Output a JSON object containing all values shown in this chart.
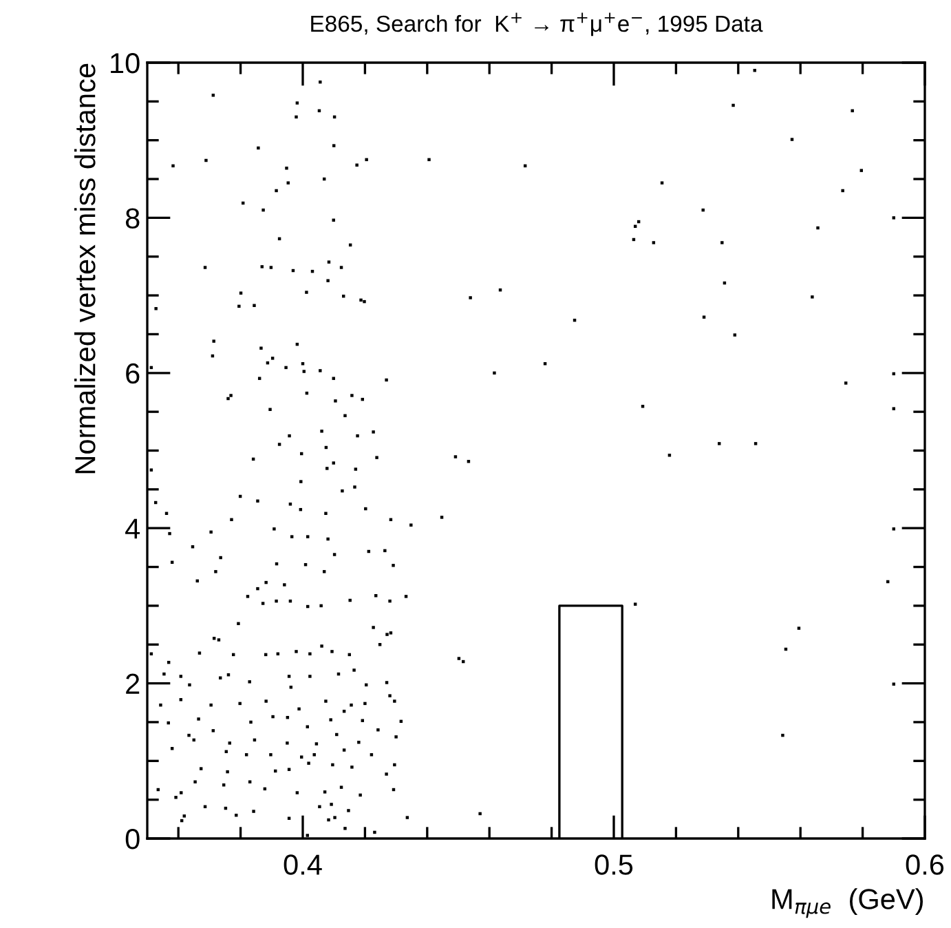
{
  "chart_data": {
    "type": "scatter",
    "title": "E865, Search for  K$^{+}$ → π$^{+}$μ$^{+}$e$^{−}$, 1995 Data",
    "xlabel": "M$_{πμe}$  (GeV)",
    "ylabel": "Normalized vertex miss distance",
    "xlim": [
      0.35,
      0.6
    ],
    "ylim": [
      0,
      10
    ],
    "xticks": [
      {
        "value": 0.36,
        "label": null
      },
      {
        "value": 0.38,
        "label": null
      },
      0.4,
      {
        "value": 0.42,
        "label": null
      },
      {
        "value": 0.44,
        "label": null
      },
      {
        "value": 0.46,
        "label": null
      },
      {
        "value": 0.48,
        "label": null
      },
      0.5,
      {
        "value": 0.52,
        "label": null
      },
      {
        "value": 0.54,
        "label": null
      },
      {
        "value": 0.56,
        "label": null
      },
      {
        "value": 0.58,
        "label": null
      },
      0.6
    ],
    "yticks": [
      0,
      {
        "value": 0.5,
        "label": null
      },
      {
        "value": 1,
        "label": null
      },
      {
        "value": 1.5,
        "label": null
      },
      2,
      {
        "value": 2.5,
        "label": null
      },
      {
        "value": 3,
        "label": null
      },
      {
        "value": 3.5,
        "label": null
      },
      4,
      {
        "value": 4.5,
        "label": null
      },
      {
        "value": 5,
        "label": null
      },
      {
        "value": 5.5,
        "label": null
      },
      6,
      {
        "value": 6.5,
        "label": null
      },
      {
        "value": 7,
        "label": null
      },
      {
        "value": 7.5,
        "label": null
      },
      8,
      {
        "value": 8.5,
        "label": null
      },
      {
        "value": 9,
        "label": null
      },
      {
        "value": 9.5,
        "label": null
      },
      10
    ],
    "grid": false,
    "legend": false,
    "marker": "square",
    "series": [
      {
        "color": "#000000",
        "x": [
          0.4056,
          0.3712,
          0.3982,
          0.4053,
          0.3979,
          0.4102,
          0.3857,
          0.41,
          0.3583,
          0.3689,
          0.3948,
          0.4174,
          0.4205,
          0.4406,
          0.4069,
          0.3953,
          0.3915,
          0.3808,
          0.3873,
          0.4099,
          0.3925,
          0.4153,
          0.3686,
          0.3869,
          0.3898,
          0.3969,
          0.4031,
          0.4084,
          0.4124,
          0.4081,
          0.3801,
          0.4012,
          0.4131,
          0.4187,
          0.4198,
          0.3528,
          0.3795,
          0.3844,
          0.3714,
          0.371,
          0.3866,
          0.3982,
          0.3903,
          0.3887,
          0.4,
          0.3946,
          0.4004,
          0.4056,
          0.3513,
          0.3861,
          0.4099,
          0.4269,
          0.3769,
          0.376,
          0.4013,
          0.4158,
          0.4105,
          0.4192,
          0.3895,
          0.4136,
          0.3957,
          0.3925,
          0.4061,
          0.4075,
          0.4176,
          0.4227,
          0.4238,
          0.3841,
          0.3996,
          0.4099,
          0.4078,
          0.417,
          0.3513,
          0.3799,
          0.3855,
          0.3994,
          0.4127,
          0.4167,
          0.3527,
          0.3562,
          0.3572,
          0.3646,
          0.3705,
          0.3771,
          0.396,
          0.3993,
          0.4074,
          0.4202,
          0.4283,
          0.4348,
          0.4447,
          0.3908,
          0.3965,
          0.4016,
          0.4081,
          0.3736,
          0.372,
          0.3661,
          0.358,
          0.3916,
          0.4009,
          0.4102,
          0.4212,
          0.4264,
          0.4291,
          0.4069,
          0.3882,
          0.3941,
          0.3855,
          0.3823,
          0.3872,
          0.3915,
          0.396,
          0.4016,
          0.4059,
          0.4152,
          0.428,
          0.4332,
          0.4235,
          0.3793,
          0.3715,
          0.373,
          0.3668,
          0.3777,
          0.3881,
          0.392,
          0.3979,
          0.4023,
          0.4061,
          0.4094,
          0.415,
          0.4227,
          0.4271,
          0.4283,
          0.4248,
          0.3513,
          0.3569,
          0.3554,
          0.3608,
          0.3735,
          0.3761,
          0.3636,
          0.3829,
          0.3956,
          0.4023,
          0.4115,
          0.4165,
          0.427,
          0.3962,
          0.4204,
          0.3608,
          0.3705,
          0.3798,
          0.3882,
          0.3988,
          0.4074,
          0.4156,
          0.42,
          0.428,
          0.4295,
          0.3543,
          0.3568,
          0.3665,
          0.3712,
          0.3833,
          0.3904,
          0.3951,
          0.4015,
          0.409,
          0.4133,
          0.4192,
          0.4242,
          0.4316,
          0.3634,
          0.365,
          0.3765,
          0.3845,
          0.395,
          0.4044,
          0.4109,
          0.418,
          0.43,
          0.358,
          0.3754,
          0.3819,
          0.3897,
          0.3996,
          0.4037,
          0.4133,
          0.4221,
          0.3673,
          0.3758,
          0.383,
          0.3912,
          0.3956,
          0.4019,
          0.4096,
          0.4158,
          0.4269,
          0.4295,
          0.3654,
          0.3746,
          0.3878,
          0.3982,
          0.4071,
          0.4124,
          0.4185,
          0.4292,
          0.3535,
          0.3592,
          0.3609,
          0.3686,
          0.3752,
          0.3842,
          0.3956,
          0.4054,
          0.4092,
          0.4147,
          0.3786,
          0.3619,
          0.3611,
          0.4083,
          0.4136,
          0.4336,
          0.4015,
          0.4231,
          0.4103,
          0.5453,
          0.5384,
          0.5767,
          0.5573,
          0.4715,
          0.5155,
          0.5796,
          0.5736,
          0.5287,
          0.59,
          0.508,
          0.5069,
          0.5656,
          0.5064,
          0.5128,
          0.5348,
          0.5356,
          0.4635,
          0.4539,
          0.5638,
          0.4874,
          0.529,
          0.5389,
          0.4616,
          0.4779,
          0.59,
          0.5746,
          0.5093,
          0.59,
          0.4491,
          0.4533,
          0.5179,
          0.5339,
          0.5456,
          0.59,
          0.5881,
          0.5069,
          0.5595,
          0.5553,
          0.4502,
          0.4516,
          0.59,
          0.5543,
          0.457
        ],
        "values": [
          9.75,
          9.58,
          9.48,
          9.38,
          9.3,
          9.3,
          8.9,
          8.93,
          8.67,
          8.74,
          8.64,
          8.68,
          8.75,
          8.75,
          8.5,
          8.45,
          8.35,
          8.19,
          8.1,
          7.97,
          7.73,
          7.65,
          7.36,
          7.37,
          7.36,
          7.32,
          7.31,
          7.43,
          7.36,
          7.19,
          7.03,
          7.04,
          6.99,
          6.94,
          6.92,
          6.83,
          6.86,
          6.87,
          6.41,
          6.22,
          6.32,
          6.37,
          6.19,
          6.13,
          6.12,
          6.07,
          6.02,
          6.03,
          6.07,
          5.93,
          5.93,
          5.91,
          5.71,
          5.67,
          5.74,
          5.71,
          5.64,
          5.66,
          5.53,
          5.45,
          5.19,
          5.08,
          5.25,
          5.04,
          5.19,
          5.24,
          4.91,
          4.89,
          4.96,
          4.84,
          4.77,
          4.76,
          4.75,
          4.41,
          4.35,
          4.6,
          4.48,
          4.53,
          4.33,
          4.19,
          3.93,
          3.76,
          3.95,
          4.11,
          4.31,
          4.24,
          4.19,
          4.25,
          4.11,
          4.04,
          4.14,
          3.99,
          3.89,
          3.89,
          3.86,
          3.62,
          3.44,
          3.32,
          3.56,
          3.54,
          3.53,
          3.66,
          3.7,
          3.71,
          3.52,
          3.44,
          3.3,
          3.27,
          3.22,
          3.12,
          3.03,
          3.06,
          3.06,
          2.99,
          3.0,
          3.07,
          3.06,
          3.12,
          3.13,
          2.77,
          2.58,
          2.56,
          2.39,
          2.37,
          2.37,
          2.38,
          2.41,
          2.38,
          2.48,
          2.41,
          2.37,
          2.72,
          2.63,
          2.65,
          2.5,
          2.38,
          2.27,
          2.12,
          2.09,
          2.07,
          2.11,
          1.98,
          2.02,
          2.09,
          2.09,
          2.12,
          2.17,
          2.01,
          1.95,
          1.98,
          1.79,
          1.72,
          1.74,
          1.77,
          1.67,
          1.77,
          1.72,
          1.74,
          1.84,
          1.77,
          1.72,
          1.49,
          1.54,
          1.39,
          1.5,
          1.57,
          1.56,
          1.44,
          1.53,
          1.64,
          1.52,
          1.4,
          1.51,
          1.33,
          1.27,
          1.23,
          1.27,
          1.23,
          1.22,
          1.34,
          1.24,
          1.31,
          1.16,
          1.12,
          1.08,
          1.08,
          1.05,
          1.08,
          1.14,
          1.08,
          0.9,
          0.86,
          0.73,
          0.87,
          0.89,
          0.97,
          0.95,
          0.92,
          0.83,
          0.95,
          0.73,
          0.69,
          0.64,
          0.59,
          0.6,
          0.66,
          0.56,
          0.63,
          0.63,
          0.53,
          0.59,
          0.41,
          0.39,
          0.35,
          0.26,
          0.41,
          0.44,
          0.36,
          0.3,
          0.29,
          0.23,
          0.24,
          0.13,
          0.27,
          0.04,
          0.08,
          0.27,
          9.9,
          9.45,
          9.38,
          9.01,
          8.67,
          8.45,
          8.61,
          8.35,
          8.1,
          8.0,
          7.95,
          7.89,
          7.87,
          7.72,
          7.68,
          7.68,
          7.16,
          7.07,
          6.97,
          6.98,
          6.68,
          6.72,
          6.49,
          6.0,
          6.12,
          5.99,
          5.87,
          5.57,
          5.54,
          4.92,
          4.86,
          4.94,
          5.09,
          5.09,
          3.99,
          3.31,
          3.02,
          2.71,
          2.44,
          2.32,
          2.28,
          1.99,
          1.33,
          0.32
        ]
      },
      {
        "type": "line",
        "color": "#000000",
        "marker": "none",
        "x": [
          0.4825,
          0.4825,
          0.5027,
          0.5027
        ],
        "values": [
          0,
          3,
          3,
          0
        ]
      }
    ]
  }
}
